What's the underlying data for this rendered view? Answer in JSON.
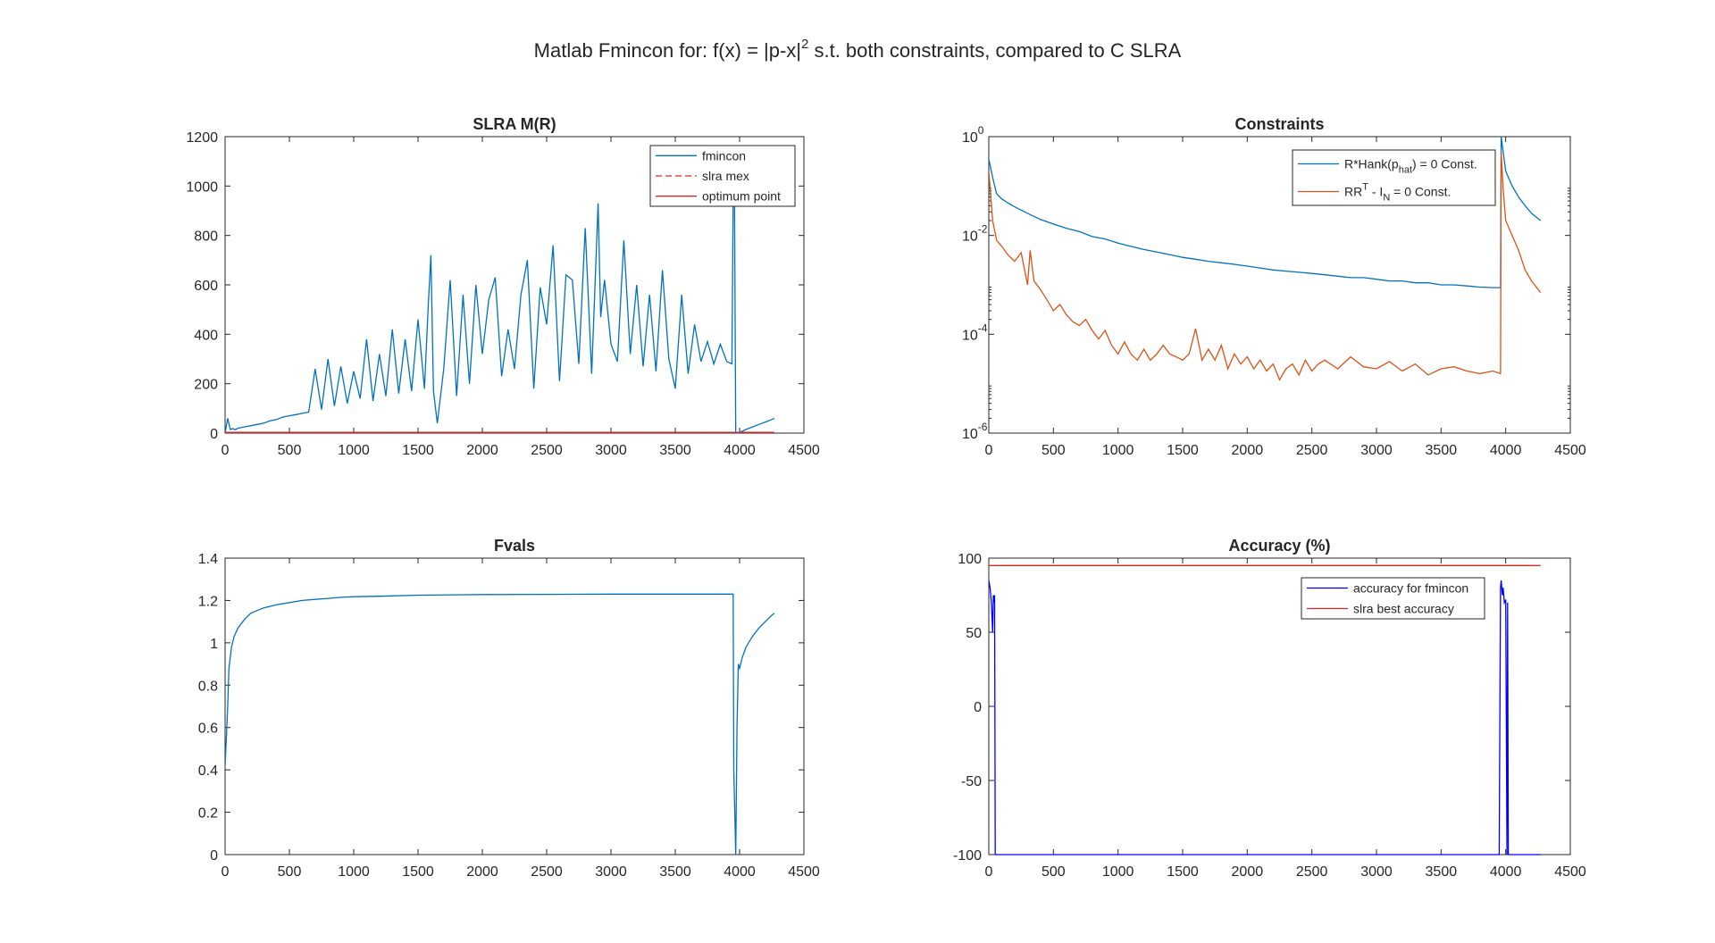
{
  "figure": {
    "title_parts": {
      "pre": "Matlab Fmincon for: f(x) = |p-x|",
      "sup": "2",
      "post": " s.t. both constraints, compared to C SLRA"
    }
  },
  "colors": {
    "blue": "#0072BD",
    "orange": "#D95319",
    "red": "#D62728",
    "pure_blue": "#0000FF",
    "axis": "#262626"
  },
  "chart_data": [
    {
      "id": "slra",
      "type": "line",
      "title": "SLRA M(R)",
      "xlim": [
        0,
        4500
      ],
      "ylim": [
        0,
        1200
      ],
      "xticks": [
        0,
        500,
        1000,
        1500,
        2000,
        2500,
        3000,
        3500,
        4000,
        4500
      ],
      "yticks": [
        0,
        200,
        400,
        600,
        800,
        1000,
        1200
      ],
      "legend": {
        "position": "top-right",
        "entries": [
          "fmincon",
          "slra mex",
          "optimum point"
        ]
      },
      "series": [
        {
          "name": "fmincon",
          "color": "#0072BD",
          "style": "solid",
          "x": [
            0,
            20,
            40,
            60,
            80,
            100,
            150,
            200,
            250,
            300,
            350,
            400,
            450,
            500,
            550,
            600,
            650,
            700,
            750,
            800,
            850,
            900,
            950,
            1000,
            1050,
            1100,
            1150,
            1200,
            1250,
            1300,
            1350,
            1400,
            1450,
            1500,
            1550,
            1580,
            1600,
            1620,
            1650,
            1700,
            1750,
            1800,
            1850,
            1900,
            1950,
            2000,
            2050,
            2100,
            2150,
            2200,
            2250,
            2300,
            2350,
            2400,
            2450,
            2500,
            2550,
            2600,
            2650,
            2700,
            2750,
            2800,
            2850,
            2900,
            2920,
            2950,
            3000,
            3050,
            3100,
            3150,
            3200,
            3250,
            3300,
            3350,
            3400,
            3450,
            3500,
            3550,
            3600,
            3650,
            3700,
            3750,
            3800,
            3850,
            3900,
            3940,
            3950,
            3960,
            3970,
            3990,
            4010,
            4050,
            4100,
            4150,
            4200,
            4250,
            4270
          ],
          "y": [
            0,
            60,
            15,
            18,
            14,
            20,
            25,
            30,
            35,
            40,
            50,
            55,
            65,
            70,
            75,
            80,
            85,
            260,
            95,
            300,
            110,
            270,
            120,
            250,
            140,
            380,
            130,
            320,
            150,
            420,
            160,
            380,
            170,
            460,
            180,
            520,
            720,
            170,
            40,
            260,
            620,
            150,
            560,
            200,
            600,
            320,
            540,
            630,
            230,
            420,
            260,
            560,
            700,
            180,
            590,
            440,
            760,
            210,
            640,
            620,
            280,
            830,
            240,
            930,
            470,
            620,
            360,
            290,
            780,
            320,
            600,
            270,
            560,
            250,
            660,
            300,
            180,
            560,
            240,
            440,
            290,
            370,
            280,
            360,
            290,
            280,
            950,
            1000,
            0,
            0,
            5,
            15,
            25,
            35,
            45,
            55,
            60
          ]
        },
        {
          "name": "slra mex",
          "color": "#D62728",
          "style": "dashed",
          "x": [
            0,
            4270
          ],
          "y": [
            3,
            3
          ]
        },
        {
          "name": "optimum point",
          "color": "#D62728",
          "style": "solid",
          "x": [
            0,
            4270
          ],
          "y": [
            3,
            3
          ]
        }
      ]
    },
    {
      "id": "constraints",
      "type": "line",
      "title": "Constraints",
      "yscale": "log",
      "xlim": [
        0,
        4500
      ],
      "ylim": [
        1e-06,
        1
      ],
      "xticks": [
        0,
        500,
        1000,
        1500,
        2000,
        2500,
        3000,
        3500,
        4000,
        4500
      ],
      "yticks": [
        {
          "base": "10",
          "exp": "-6",
          "value": -6
        },
        {
          "base": "10",
          "exp": "-4",
          "value": -4
        },
        {
          "base": "10",
          "exp": "-2",
          "value": -2
        },
        {
          "base": "10",
          "exp": "0",
          "value": 0
        }
      ],
      "legend": {
        "position": "top-right",
        "entries": [
          {
            "pre": "R*Hank(p",
            "sub": "hat",
            "post": ") = 0 Const."
          },
          {
            "pre": "RR",
            "sup": "T",
            "mid": " - I",
            "sub": "N",
            "post": " = 0 Const."
          }
        ]
      },
      "series": [
        {
          "color": "#0072BD",
          "x": [
            0,
            30,
            60,
            100,
            150,
            200,
            300,
            400,
            500,
            600,
            700,
            800,
            900,
            1000,
            1100,
            1200,
            1300,
            1400,
            1500,
            1600,
            1700,
            1800,
            1900,
            2000,
            2100,
            2200,
            2300,
            2400,
            2500,
            2600,
            2700,
            2800,
            2900,
            3000,
            3100,
            3200,
            3300,
            3400,
            3500,
            3600,
            3700,
            3800,
            3900,
            3960,
            3965,
            3980,
            4000,
            4050,
            4100,
            4150,
            4200,
            4270
          ],
          "y": [
            0.35,
            0.15,
            0.07,
            0.055,
            0.045,
            0.038,
            0.028,
            0.021,
            0.017,
            0.014,
            0.012,
            0.0095,
            0.0085,
            0.007,
            0.006,
            0.0052,
            0.0046,
            0.0041,
            0.0036,
            0.0033,
            0.003,
            0.0028,
            0.0026,
            0.0024,
            0.0022,
            0.002,
            0.0019,
            0.0018,
            0.0017,
            0.0016,
            0.0015,
            0.0014,
            0.0014,
            0.0013,
            0.0012,
            0.0012,
            0.0011,
            0.0011,
            0.001,
            0.001,
            0.00095,
            0.0009,
            0.00088,
            0.00088,
            1,
            0.5,
            0.2,
            0.1,
            0.06,
            0.04,
            0.028,
            0.02
          ]
        },
        {
          "color": "#D95319",
          "x": [
            0,
            30,
            60,
            100,
            150,
            200,
            250,
            300,
            320,
            350,
            400,
            450,
            500,
            550,
            600,
            650,
            700,
            750,
            800,
            850,
            900,
            950,
            1000,
            1050,
            1100,
            1150,
            1200,
            1250,
            1300,
            1350,
            1400,
            1450,
            1500,
            1550,
            1600,
            1650,
            1700,
            1750,
            1800,
            1850,
            1900,
            1950,
            2000,
            2050,
            2100,
            2150,
            2200,
            2250,
            2300,
            2350,
            2400,
            2450,
            2500,
            2550,
            2600,
            2700,
            2800,
            2900,
            3000,
            3100,
            3200,
            3300,
            3400,
            3500,
            3600,
            3700,
            3800,
            3900,
            3960,
            3965,
            3980,
            4000,
            4050,
            4100,
            4150,
            4200,
            4270
          ],
          "y": [
            0.2,
            0.02,
            0.008,
            0.006,
            0.004,
            0.003,
            0.0045,
            0.001,
            0.005,
            0.0012,
            0.0008,
            0.0005,
            0.0003,
            0.0004,
            0.00025,
            0.00018,
            0.00015,
            0.0002,
            0.00012,
            8e-05,
            0.00012,
            6e-05,
            4e-05,
            7e-05,
            4e-05,
            3e-05,
            5e-05,
            3e-05,
            4e-05,
            6e-05,
            4e-05,
            3.5e-05,
            3e-05,
            4e-05,
            0.00013,
            3e-05,
            5e-05,
            3e-05,
            6e-05,
            2e-05,
            4e-05,
            2.5e-05,
            3.5e-05,
            2e-05,
            3e-05,
            1.8e-05,
            2.5e-05,
            1.2e-05,
            2e-05,
            2.5e-05,
            1.5e-05,
            3e-05,
            1.8e-05,
            2.5e-05,
            3e-05,
            2e-05,
            3.5e-05,
            2.2e-05,
            2e-05,
            2.8e-05,
            1.8e-05,
            2.5e-05,
            1.5e-05,
            2e-05,
            2.2e-05,
            1.8e-05,
            1.6e-05,
            1.8e-05,
            1.6e-05,
            0.5,
            0.09,
            0.02,
            0.01,
            0.005,
            0.002,
            0.0012,
            0.0007
          ]
        }
      ]
    },
    {
      "id": "fvals",
      "type": "line",
      "title": "Fvals",
      "xlim": [
        0,
        4500
      ],
      "ylim": [
        0,
        1.4
      ],
      "xticks": [
        0,
        500,
        1000,
        1500,
        2000,
        2500,
        3000,
        3500,
        4000,
        4500
      ],
      "yticks": [
        0,
        0.2,
        0.4,
        0.6,
        0.8,
        1,
        1.2,
        1.4
      ],
      "series": [
        {
          "color": "#0072BD",
          "x": [
            0,
            10,
            20,
            30,
            50,
            70,
            100,
            150,
            200,
            300,
            400,
            500,
            600,
            700,
            800,
            900,
            1000,
            1200,
            1500,
            2000,
            2500,
            3000,
            3500,
            3900,
            3950,
            3955,
            3970,
            3980,
            3990,
            4000,
            4020,
            4050,
            4100,
            4150,
            4200,
            4250,
            4270
          ],
          "y": [
            0.42,
            0.55,
            0.7,
            0.88,
            0.98,
            1.03,
            1.07,
            1.11,
            1.14,
            1.165,
            1.18,
            1.19,
            1.2,
            1.205,
            1.21,
            1.215,
            1.218,
            1.22,
            1.225,
            1.228,
            1.229,
            1.23,
            1.23,
            1.23,
            1.23,
            0.4,
            0,
            0.6,
            0.9,
            0.88,
            0.93,
            0.98,
            1.03,
            1.07,
            1.1,
            1.13,
            1.14
          ]
        }
      ]
    },
    {
      "id": "accuracy",
      "type": "line",
      "title": "Accuracy (%)",
      "xlim": [
        0,
        4500
      ],
      "ylim": [
        -100,
        100
      ],
      "xticks": [
        0,
        500,
        1000,
        1500,
        2000,
        2500,
        3000,
        3500,
        4000,
        4500
      ],
      "yticks": [
        -100,
        -50,
        0,
        50,
        100
      ],
      "legend": {
        "position": "top-right",
        "entries": [
          "accuracy for fmincon",
          "slra best accuracy"
        ]
      },
      "series": [
        {
          "name": "accuracy for fmincon",
          "color": "#0000FF",
          "x": [
            0,
            10,
            20,
            30,
            35,
            40,
            45,
            50,
            55,
            60,
            65,
            70,
            3940,
            3950,
            3960,
            3965,
            3975,
            3980,
            3990,
            4000,
            4010,
            4015,
            4020,
            4030,
            4270
          ],
          "y": [
            85,
            80,
            70,
            50,
            75,
            70,
            75,
            -100,
            -100,
            -100,
            -100,
            -100,
            -100,
            -100,
            80,
            85,
            75,
            80,
            70,
            72,
            -100,
            70,
            -100,
            -100,
            -100
          ]
        },
        {
          "name": "slra best accuracy",
          "color": "#D62728",
          "x": [
            0,
            4270
          ],
          "y": [
            95,
            95
          ]
        }
      ]
    }
  ]
}
